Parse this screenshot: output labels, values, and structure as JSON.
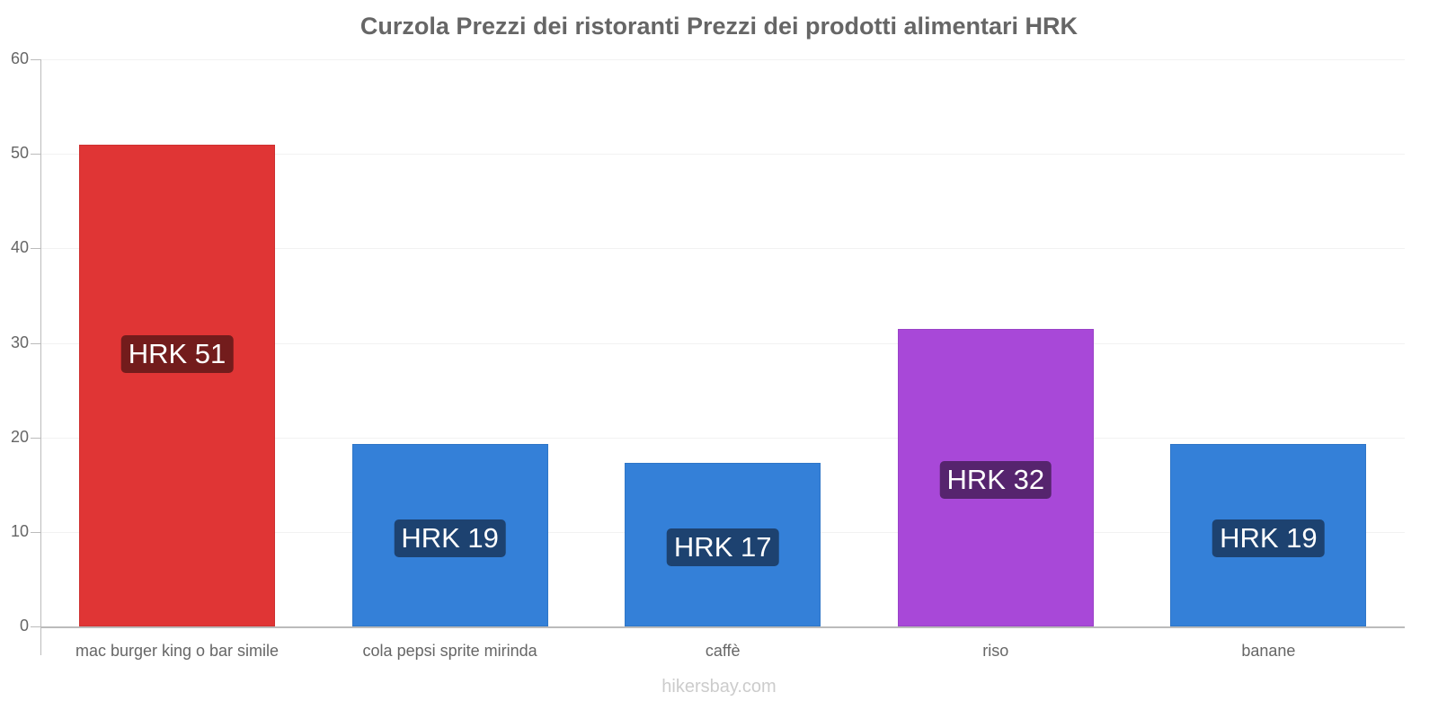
{
  "title": "Curzola Prezzi dei ristoranti Prezzi dei prodotti alimentari HRK",
  "watermark": "hikersbay.com",
  "y_axis": {
    "ticks": [
      "0",
      "10",
      "20",
      "30",
      "40",
      "50",
      "60"
    ]
  },
  "bars": [
    {
      "label": "mac burger king o bar simile",
      "value_label": "HRK 51",
      "color": "#e03535",
      "badge_color": "#731c1c"
    },
    {
      "label": "cola pepsi sprite mirinda",
      "value_label": "HRK 19",
      "color": "#3480d8",
      "badge_color": "#1d4270"
    },
    {
      "label": "caffè",
      "value_label": "HRK 17",
      "color": "#3480d8",
      "badge_color": "#1d4270"
    },
    {
      "label": "riso",
      "value_label": "HRK 32",
      "color": "#a848d8",
      "badge_color": "#56246e"
    },
    {
      "label": "banane",
      "value_label": "HRK 19",
      "color": "#3480d8",
      "badge_color": "#1d4270"
    }
  ],
  "chart_data": {
    "type": "bar",
    "title": "Curzola Prezzi dei ristoranti Prezzi dei prodotti alimentari HRK",
    "categories": [
      "mac burger king o bar simile",
      "cola pepsi sprite mirinda",
      "caffè",
      "riso",
      "banane"
    ],
    "values": [
      51,
      19.3,
      17.3,
      31.5,
      19.3
    ],
    "data_labels": [
      "HRK 51",
      "HRK 19",
      "HRK 17",
      "HRK 32",
      "HRK 19"
    ],
    "colors": [
      "#e03535",
      "#3480d8",
      "#3480d8",
      "#a848d8",
      "#3480d8"
    ],
    "xlabel": "",
    "ylabel": "",
    "ylim": [
      0,
      60
    ],
    "yticks": [
      0,
      10,
      20,
      30,
      40,
      50,
      60
    ],
    "grid": true,
    "legend": "none",
    "unit": "HRK"
  }
}
